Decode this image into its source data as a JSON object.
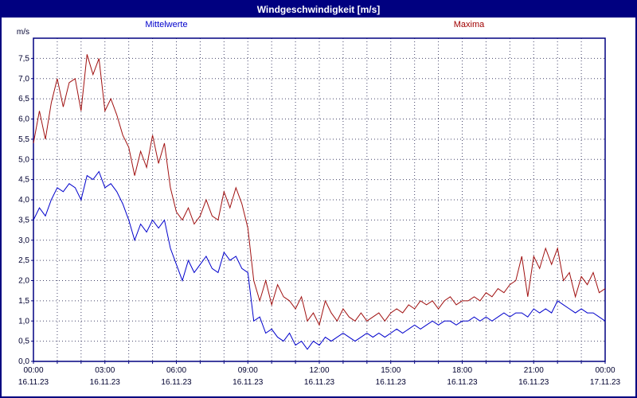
{
  "window": {
    "title": "Windgeschwindigkeit [m/s]"
  },
  "legend": [
    {
      "label": "Mittelwerte",
      "color": "#0000cc"
    },
    {
      "label": "Maxima",
      "color": "#a00000"
    }
  ],
  "colors": {
    "title_bar_bg": "#000080",
    "title_bar_text": "#ffffff",
    "plot_border": "#000080",
    "grid": "#44446a",
    "tick_text": "#000030",
    "mean_line": "#0000cc",
    "max_line": "#a01010"
  },
  "chart_data": {
    "type": "line",
    "title": "Windgeschwindigkeit [m/s]",
    "ylabel": "m/s",
    "ylim": [
      0,
      8
    ],
    "grid": "dashed, hourly vertical, 0.5 m/s horizontal",
    "legend_position": "top",
    "y_tick_values": [
      0,
      0.5,
      1.0,
      1.5,
      2.0,
      2.5,
      3.0,
      3.5,
      4.0,
      4.5,
      5.0,
      5.5,
      6.0,
      6.5,
      7.0,
      7.5
    ],
    "y_tick_labels": [
      "0,0",
      "0,5",
      "1,0",
      "1,5",
      "2,0",
      "2,5",
      "3,0",
      "3,5",
      "4,0",
      "4,5",
      "5,0",
      "5,5",
      "6,0",
      "6,5",
      "7,0",
      "7,5"
    ],
    "x_hours_range": [
      0,
      24
    ],
    "x_ticks": [
      {
        "hour": 0,
        "time": "00:00",
        "date": "16.11.23"
      },
      {
        "hour": 3,
        "time": "03:00",
        "date": "16.11.23"
      },
      {
        "hour": 6,
        "time": "06:00",
        "date": "16.11.23"
      },
      {
        "hour": 9,
        "time": "09:00",
        "date": "16.11.23"
      },
      {
        "hour": 12,
        "time": "12:00",
        "date": "16.11.23"
      },
      {
        "hour": 15,
        "time": "15:00",
        "date": "16.11.23"
      },
      {
        "hour": 18,
        "time": "18:00",
        "date": "16.11.23"
      },
      {
        "hour": 21,
        "time": "21:00",
        "date": "16.11.23"
      },
      {
        "hour": 24,
        "time": "00:00",
        "date": "17.11.23"
      }
    ],
    "interval_minutes": 15,
    "series": [
      {
        "name": "Mittelwerte",
        "color": "#0000cc",
        "values": [
          3.5,
          3.8,
          3.6,
          4.0,
          4.3,
          4.2,
          4.4,
          4.3,
          4.0,
          4.6,
          4.5,
          4.7,
          4.3,
          4.4,
          4.2,
          3.9,
          3.5,
          3.0,
          3.4,
          3.2,
          3.5,
          3.3,
          3.5,
          2.8,
          2.4,
          2.0,
          2.5,
          2.2,
          2.4,
          2.6,
          2.3,
          2.2,
          2.7,
          2.5,
          2.6,
          2.3,
          2.2,
          1.0,
          1.1,
          0.7,
          0.8,
          0.6,
          0.5,
          0.7,
          0.4,
          0.5,
          0.3,
          0.5,
          0.4,
          0.6,
          0.5,
          0.6,
          0.7,
          0.6,
          0.5,
          0.6,
          0.7,
          0.6,
          0.7,
          0.6,
          0.7,
          0.8,
          0.7,
          0.8,
          0.9,
          0.8,
          0.9,
          1.0,
          0.9,
          1.0,
          1.0,
          0.9,
          1.0,
          1.0,
          1.1,
          1.0,
          1.1,
          1.0,
          1.1,
          1.2,
          1.1,
          1.2,
          1.2,
          1.1,
          1.3,
          1.2,
          1.3,
          1.2,
          1.5,
          1.4,
          1.3,
          1.2,
          1.3,
          1.2,
          1.2,
          1.1,
          1.0
        ]
      },
      {
        "name": "Maxima",
        "color": "#a01010",
        "values": [
          5.4,
          6.2,
          5.5,
          6.4,
          7.0,
          6.3,
          6.9,
          7.0,
          6.2,
          7.6,
          7.1,
          7.5,
          6.2,
          6.5,
          6.1,
          5.6,
          5.3,
          4.6,
          5.2,
          4.8,
          5.6,
          4.9,
          5.4,
          4.3,
          3.7,
          3.5,
          3.8,
          3.4,
          3.6,
          4.0,
          3.6,
          3.5,
          4.2,
          3.8,
          4.3,
          3.9,
          3.3,
          2.0,
          1.5,
          2.0,
          1.4,
          1.9,
          1.6,
          1.5,
          1.3,
          1.6,
          1.0,
          1.2,
          0.9,
          1.5,
          1.2,
          1.0,
          1.3,
          1.1,
          1.0,
          1.2,
          1.0,
          1.1,
          1.2,
          1.0,
          1.2,
          1.3,
          1.2,
          1.4,
          1.3,
          1.5,
          1.4,
          1.5,
          1.3,
          1.5,
          1.6,
          1.4,
          1.5,
          1.5,
          1.6,
          1.5,
          1.7,
          1.6,
          1.8,
          1.7,
          1.9,
          2.0,
          2.6,
          1.6,
          2.6,
          2.3,
          2.8,
          2.4,
          2.8,
          2.0,
          2.2,
          1.6,
          2.1,
          1.9,
          2.2,
          1.7,
          1.8
        ]
      }
    ]
  }
}
